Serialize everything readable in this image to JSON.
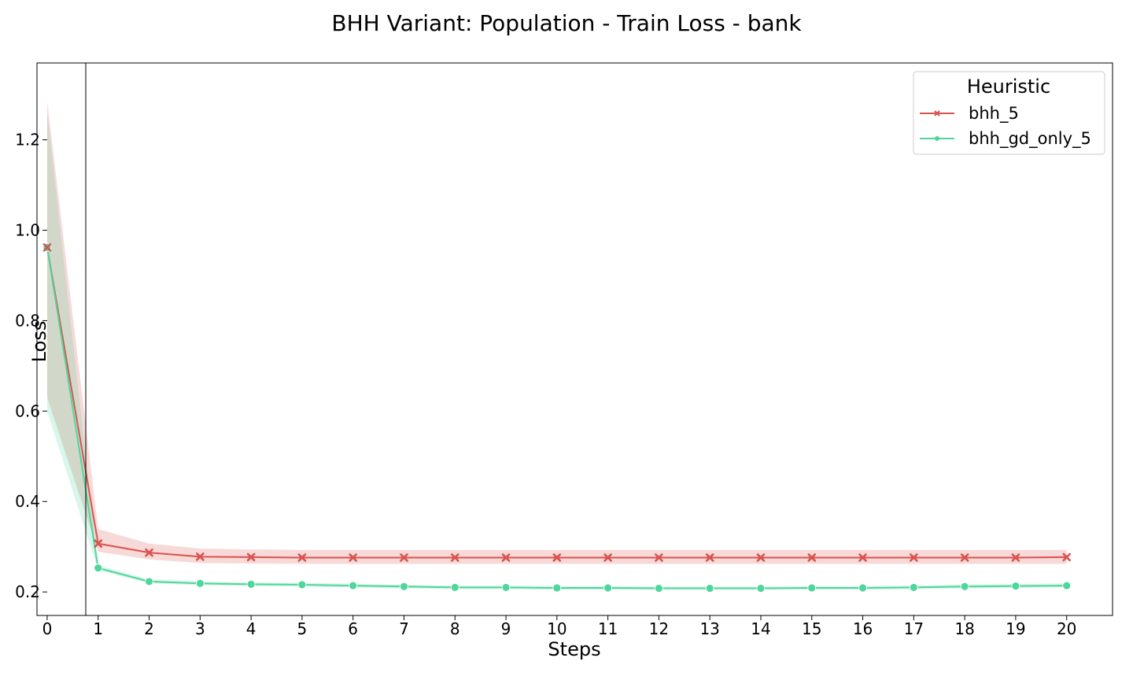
{
  "chart_data": {
    "type": "line",
    "title": "BHH Variant: Population - Train Loss - bank",
    "xlabel": "Steps",
    "ylabel": "Loss",
    "xlim": [
      -0.2,
      20.9
    ],
    "ylim": [
      0.148,
      1.37
    ],
    "x": [
      0,
      1,
      2,
      3,
      4,
      5,
      6,
      7,
      8,
      9,
      10,
      11,
      12,
      13,
      14,
      15,
      16,
      17,
      18,
      19,
      20
    ],
    "xticks": [
      0,
      1,
      2,
      3,
      4,
      5,
      6,
      7,
      8,
      9,
      10,
      11,
      12,
      13,
      14,
      15,
      16,
      17,
      18,
      19,
      20
    ],
    "yticks": [
      0.2,
      0.4,
      0.6,
      0.8,
      1.0,
      1.2
    ],
    "ytick_labels": [
      "0.2",
      "0.4",
      "0.6",
      "0.8",
      "1.0",
      "1.2"
    ],
    "grid": false,
    "legend": {
      "title": "Heuristic",
      "placement": "top-right"
    },
    "series": [
      {
        "name": "bhh_5",
        "color": "#d9534f",
        "marker": "x",
        "values": [
          0.962,
          0.307,
          0.287,
          0.278,
          0.277,
          0.276,
          0.276,
          0.276,
          0.276,
          0.276,
          0.276,
          0.276,
          0.276,
          0.276,
          0.276,
          0.276,
          0.276,
          0.276,
          0.276,
          0.276,
          0.277
        ],
        "ci_lower": [
          0.63,
          0.289,
          0.272,
          0.264,
          0.263,
          0.262,
          0.262,
          0.262,
          0.262,
          0.262,
          0.262,
          0.262,
          0.262,
          0.262,
          0.262,
          0.262,
          0.262,
          0.262,
          0.262,
          0.262,
          0.262
        ],
        "ci_upper": [
          1.285,
          0.339,
          0.307,
          0.296,
          0.294,
          0.293,
          0.293,
          0.293,
          0.293,
          0.293,
          0.293,
          0.293,
          0.293,
          0.293,
          0.293,
          0.293,
          0.293,
          0.293,
          0.293,
          0.293,
          0.293
        ]
      },
      {
        "name": "bhh_gd_only_5",
        "color": "#4fd69c",
        "marker": "o",
        "values": [
          0.962,
          0.253,
          0.223,
          0.219,
          0.217,
          0.216,
          0.214,
          0.212,
          0.21,
          0.21,
          0.209,
          0.209,
          0.208,
          0.208,
          0.208,
          0.209,
          0.209,
          0.21,
          0.212,
          0.213,
          0.214
        ],
        "ci_lower": [
          0.6,
          0.248,
          0.219,
          0.215,
          0.213,
          0.212,
          0.21,
          0.208,
          0.206,
          0.206,
          0.205,
          0.205,
          0.205,
          0.205,
          0.205,
          0.205,
          0.205,
          0.206,
          0.208,
          0.209,
          0.21
        ],
        "ci_upper": [
          1.26,
          0.259,
          0.228,
          0.223,
          0.221,
          0.22,
          0.218,
          0.216,
          0.214,
          0.214,
          0.213,
          0.213,
          0.212,
          0.212,
          0.212,
          0.213,
          0.213,
          0.214,
          0.217,
          0.218,
          0.219
        ]
      }
    ]
  }
}
